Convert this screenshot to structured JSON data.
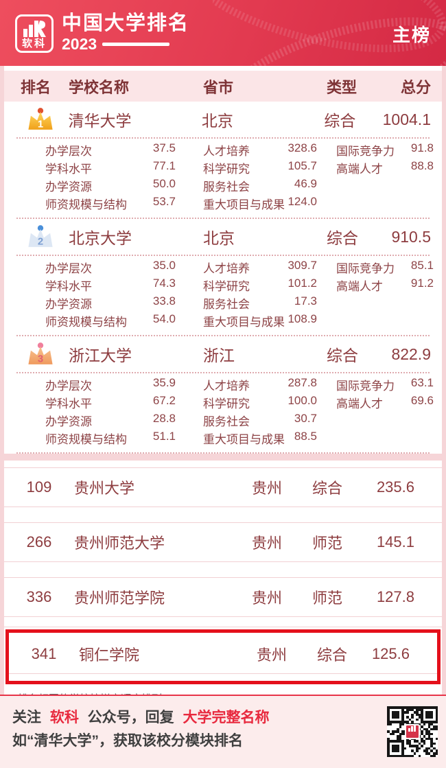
{
  "colors": {
    "accent": "#e8293e",
    "highlight_border": "#e4101b",
    "text_maroon": "#8d3c3f"
  },
  "header": {
    "brand": "软科",
    "title": "中国大学排名",
    "year": "2023",
    "badge": "主榜"
  },
  "table": {
    "columns": [
      "排名",
      "学校名称",
      "省市",
      "类型",
      "总分"
    ],
    "top3": [
      {
        "rank": "1",
        "name": "清华大学",
        "province": "北京",
        "type": "综合",
        "score": "1004.1",
        "m1": [
          {
            "label": "办学层次",
            "value": "37.5"
          },
          {
            "label": "学科水平",
            "value": "77.1"
          },
          {
            "label": "办学资源",
            "value": "50.0"
          },
          {
            "label": "师资规模与结构",
            "value": "53.7"
          }
        ],
        "m2": [
          {
            "label": "人才培养",
            "value": "328.6"
          },
          {
            "label": "科学研究",
            "value": "105.7"
          },
          {
            "label": "服务社会",
            "value": "46.9"
          },
          {
            "label": "重大项目与成果",
            "value": "124.0"
          }
        ],
        "m3": [
          {
            "label": "国际竞争力",
            "value": "91.8"
          },
          {
            "label": "高端人才",
            "value": "88.8"
          }
        ]
      },
      {
        "rank": "2",
        "name": "北京大学",
        "province": "北京",
        "type": "综合",
        "score": "910.5",
        "m1": [
          {
            "label": "办学层次",
            "value": "35.0"
          },
          {
            "label": "学科水平",
            "value": "74.3"
          },
          {
            "label": "办学资源",
            "value": "33.8"
          },
          {
            "label": "师资规模与结构",
            "value": "54.0"
          }
        ],
        "m2": [
          {
            "label": "人才培养",
            "value": "309.7"
          },
          {
            "label": "科学研究",
            "value": "101.2"
          },
          {
            "label": "服务社会",
            "value": "17.3"
          },
          {
            "label": "重大项目与成果",
            "value": "108.9"
          }
        ],
        "m3": [
          {
            "label": "国际竞争力",
            "value": "85.1"
          },
          {
            "label": "高端人才",
            "value": "91.2"
          }
        ]
      },
      {
        "rank": "3",
        "name": "浙江大学",
        "province": "浙江",
        "type": "综合",
        "score": "822.9",
        "m1": [
          {
            "label": "办学层次",
            "value": "35.9"
          },
          {
            "label": "学科水平",
            "value": "67.2"
          },
          {
            "label": "办学资源",
            "value": "28.8"
          },
          {
            "label": "师资规模与结构",
            "value": "51.1"
          }
        ],
        "m2": [
          {
            "label": "人才培养",
            "value": "287.8"
          },
          {
            "label": "科学研究",
            "value": "100.0"
          },
          {
            "label": "服务社会",
            "value": "30.7"
          },
          {
            "label": "重大项目与成果",
            "value": "88.5"
          }
        ],
        "m3": [
          {
            "label": "国际竞争力",
            "value": "63.1"
          },
          {
            "label": "高端人才",
            "value": "69.6"
          }
        ]
      }
    ],
    "rows": [
      {
        "rank": "109",
        "name": "贵州大学",
        "province": "贵州",
        "type": "综合",
        "score": "235.6"
      },
      {
        "rank": "266",
        "name": "贵州师范大学",
        "province": "贵州",
        "type": "师范",
        "score": "145.1"
      },
      {
        "rank": "336",
        "name": "贵州师范学院",
        "province": "贵州",
        "type": "师范",
        "score": "127.8"
      },
      {
        "rank": "341",
        "name": "铜仁学院",
        "province": "贵州",
        "type": "综合",
        "score": "125.6",
        "highlighted": true
      }
    ]
  },
  "footnote": "* 排名相同的学校按拼音顺序排列",
  "footer": {
    "prefix": "关注",
    "brand": "软科",
    "middle": "公众号，回复",
    "keyword": "大学完整名称",
    "line2": "如“清华大学”，获取该校分模块排名"
  }
}
